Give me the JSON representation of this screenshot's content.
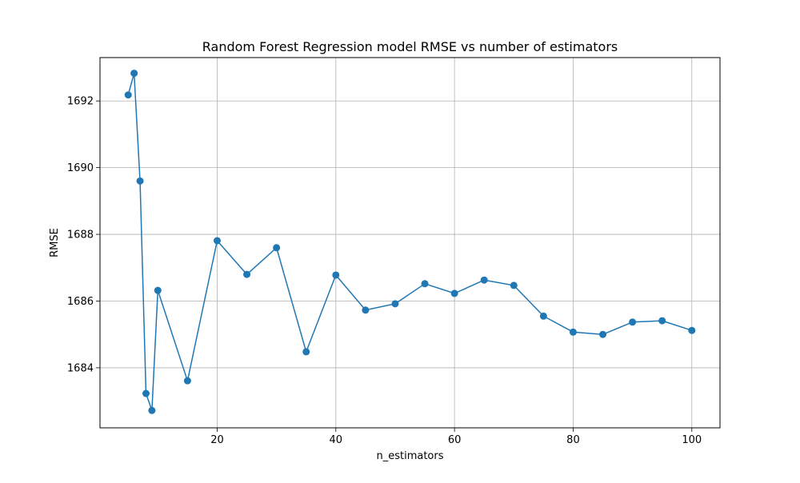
{
  "chart_data": {
    "type": "line",
    "title": "Random Forest Regression model RMSE vs number of estimators",
    "xlabel": "n_estimators",
    "ylabel": "RMSE",
    "x_ticks": [
      20,
      40,
      60,
      80,
      100
    ],
    "y_ticks": [
      1684,
      1686,
      1688,
      1690,
      1692
    ],
    "xlim": [
      0.25,
      104.75
    ],
    "ylim": [
      1682.2,
      1693.3
    ],
    "grid": true,
    "series": [
      {
        "color": "#1f77b4",
        "marker": "circle",
        "x": [
          5,
          6,
          7,
          8,
          9,
          10,
          15,
          20,
          25,
          30,
          35,
          40,
          45,
          50,
          55,
          60,
          65,
          70,
          75,
          80,
          85,
          90,
          95,
          100
        ],
        "y": [
          1692.18,
          1692.83,
          1689.6,
          1683.23,
          1682.72,
          1686.32,
          1683.61,
          1687.81,
          1686.8,
          1687.6,
          1684.48,
          1686.78,
          1685.73,
          1685.92,
          1686.52,
          1686.23,
          1686.63,
          1686.47,
          1685.55,
          1685.07,
          1685.0,
          1685.37,
          1685.41,
          1685.12
        ]
      }
    ]
  }
}
